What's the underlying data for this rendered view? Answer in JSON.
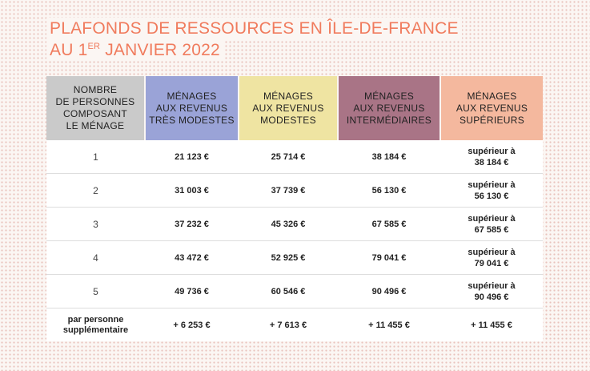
{
  "title": {
    "line1": "PLAFONDS DE RESSOURCES EN ÎLE-DE-FRANCE",
    "line2_prefix": "AU 1",
    "line2_sup": "ER",
    "line2_suffix": " JANVIER 2022"
  },
  "colors": {
    "title": "#f07b5d",
    "header_nb": "#cacaca",
    "header_tres_modestes": "#9aa3d7",
    "header_modestes": "#efe4a2",
    "header_intermediaires": "#a97486",
    "header_superieurs": "#f4b89e"
  },
  "table": {
    "headers": [
      [
        "NOMBRE",
        "DE PERSONNES",
        "COMPOSANT",
        "LE MÉNAGE"
      ],
      [
        "MÉNAGES",
        "AUX REVENUS",
        "TRÈS MODESTES"
      ],
      [
        "MÉNAGES",
        "AUX REVENUS",
        "MODESTES"
      ],
      [
        "MÉNAGES",
        "AUX REVENUS",
        "INTERMÉDIAIRES"
      ],
      [
        "MÉNAGES",
        "AUX REVENUS",
        "SUPÉRIEURS"
      ]
    ],
    "rows": [
      {
        "nb": "1",
        "tres_modestes": "21 123 €",
        "modestes": "25 714 €",
        "intermediaires": "38 184 €",
        "superieurs": [
          "supérieur à",
          "38 184 €"
        ]
      },
      {
        "nb": "2",
        "tres_modestes": "31 003 €",
        "modestes": "37 739 €",
        "intermediaires": "56 130 €",
        "superieurs": [
          "supérieur à",
          "56 130 €"
        ]
      },
      {
        "nb": "3",
        "tres_modestes": "37 232 €",
        "modestes": "45 326 €",
        "intermediaires": "67 585 €",
        "superieurs": [
          "supérieur à",
          "67 585 €"
        ]
      },
      {
        "nb": "4",
        "tres_modestes": "43 472 €",
        "modestes": "52 925 €",
        "intermediaires": "79 041 €",
        "superieurs": [
          "supérieur à",
          "79 041 €"
        ]
      },
      {
        "nb": "5",
        "tres_modestes": "49 736 €",
        "modestes": "60 546 €",
        "intermediaires": "90 496 €",
        "superieurs": [
          "supérieur à",
          "90 496 €"
        ]
      }
    ],
    "extra": {
      "nb": [
        "par personne",
        "supplémentaire"
      ],
      "tres_modestes": "+ 6 253 €",
      "modestes": "+ 7 613 €",
      "intermediaires": "+ 11 455 €",
      "superieurs": "+ 11 455 €"
    }
  }
}
